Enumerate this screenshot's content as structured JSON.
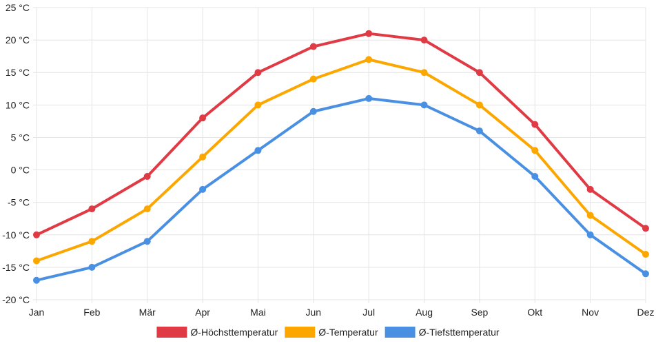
{
  "chart_data": {
    "type": "line",
    "title": "",
    "xlabel": "",
    "ylabel": "",
    "ylim": [
      -20,
      25
    ],
    "ytick_step": 5,
    "yunit": " °C",
    "grid": true,
    "legend_position": "bottom",
    "categories": [
      "Jan",
      "Feb",
      "Mär",
      "Apr",
      "Mai",
      "Jun",
      "Jul",
      "Aug",
      "Sep",
      "Okt",
      "Nov",
      "Dez"
    ],
    "series": [
      {
        "name": "Ø-Höchsttemperatur",
        "color": "#e03a45",
        "values": [
          -10,
          -6,
          -1,
          8,
          15,
          19,
          21,
          20,
          15,
          7,
          -3,
          -9
        ]
      },
      {
        "name": "Ø-Temperatur",
        "color": "#fba700",
        "values": [
          -14,
          -11,
          -6,
          2,
          10,
          14,
          17,
          15,
          10,
          3,
          -7,
          -13
        ]
      },
      {
        "name": "Ø-Tiefsttemperatur",
        "color": "#4a90e2",
        "values": [
          -17,
          -15,
          -11,
          -3,
          3,
          9,
          11,
          10,
          6,
          -1,
          -10,
          -16
        ]
      }
    ]
  }
}
